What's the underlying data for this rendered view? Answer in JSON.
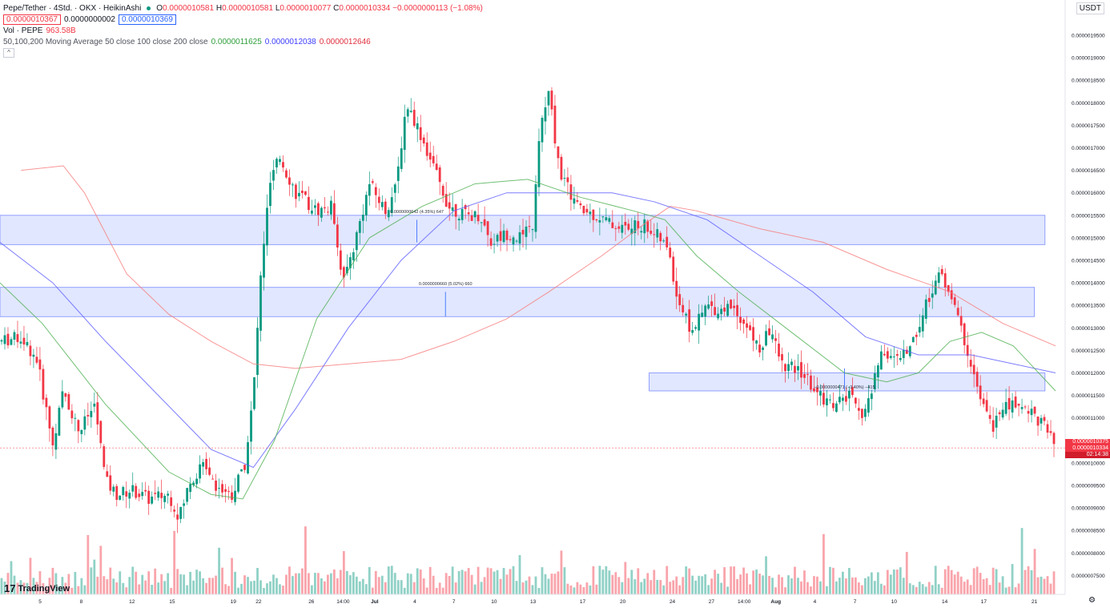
{
  "header": {
    "symbol": "Pepe/Tether · 4Std. · OKX · HeikinAshi",
    "open_label": "O",
    "open": "0.0000010581",
    "high_label": "H",
    "high": "0.0000010581",
    "low_label": "L",
    "low": "0.0000010077",
    "close_label": "C",
    "close": "0.0000010334",
    "change": "−0.0000000113 (−1.08%)",
    "bid": "0.0000010367",
    "spread": "0.0000000002",
    "ask": "0.0000010369",
    "vol_label": "Vol · PEPE",
    "vol_value": "963.58B",
    "ma_label": "50,100,200 Moving Average 50 close 100 close 200 close",
    "ma50_value": "0.0000011625",
    "ma100_value": "0.0000012038",
    "ma200_value": "0.0000012646",
    "collapse_glyph": "^"
  },
  "currency": "USDT",
  "price_tags": [
    "0.0000010375",
    "0.0000010334",
    "02:14:38"
  ],
  "brand": "TradingView",
  "brand_mark": "17",
  "gear_glyph": "⚙",
  "colors": {
    "up": "#089981",
    "down": "#F23645",
    "ma50": "#4CAF50",
    "ma100": "#5B5BFF",
    "ma200": "#F77B7B",
    "zone": "#DCE3FF"
  },
  "chart_data": {
    "type": "candlestick",
    "y_axis_ticks": [
      "0.0000019500",
      "0.0000019000",
      "0.0000018500",
      "0.0000018000",
      "0.0000017500",
      "0.0000017000",
      "0.0000016500",
      "0.0000016000",
      "0.0000015500",
      "0.0000015000",
      "0.0000014500",
      "0.0000014000",
      "0.0000013500",
      "0.0000013000",
      "0.0000012500",
      "0.0000012000",
      "0.0000011500",
      "0.0000011000",
      "0.0000010500",
      "0.0000010000",
      "0.0000009500",
      "0.0000009000",
      "0.0000008500",
      "0.0000008000",
      "0.0000007500"
    ],
    "y_tick_values": [
      1.95,
      1.9,
      1.85,
      1.8,
      1.75,
      1.7,
      1.65,
      1.6,
      1.55,
      1.5,
      1.45,
      1.4,
      1.35,
      1.3,
      1.25,
      1.2,
      1.15,
      1.1,
      1.05,
      1.0,
      0.95,
      0.9,
      0.85,
      0.8,
      0.75
    ],
    "price_unit": "×1e-6",
    "x_labels": [
      "5",
      "8",
      "12",
      "15",
      "19",
      "22",
      "26",
      "14:00",
      "Jul",
      "4",
      "7",
      "10",
      "13",
      "17",
      "20",
      "24",
      "27",
      "14:00",
      "Aug",
      "4",
      "7",
      "10",
      "14",
      "17",
      "21"
    ],
    "x_label_fractions": [
      0.038,
      0.077,
      0.125,
      0.163,
      0.221,
      0.245,
      0.295,
      0.325,
      0.355,
      0.393,
      0.43,
      0.468,
      0.505,
      0.552,
      0.59,
      0.637,
      0.674,
      0.705,
      0.735,
      0.772,
      0.81,
      0.847,
      0.895,
      0.932,
      0.98
    ],
    "price_path": [
      [
        0,
        1.27
      ],
      [
        0.02,
        1.28
      ],
      [
        0.035,
        1.23
      ],
      [
        0.05,
        1.04
      ],
      [
        0.06,
        1.16
      ],
      [
        0.075,
        1.07
      ],
      [
        0.09,
        1.13
      ],
      [
        0.1,
        0.96
      ],
      [
        0.11,
        0.93
      ],
      [
        0.125,
        0.94
      ],
      [
        0.14,
        0.92
      ],
      [
        0.16,
        0.93
      ],
      [
        0.17,
        0.88
      ],
      [
        0.18,
        0.96
      ],
      [
        0.195,
        1.0
      ],
      [
        0.205,
        0.95
      ],
      [
        0.22,
        0.93
      ],
      [
        0.232,
        1.0
      ],
      [
        0.24,
        1.15
      ],
      [
        0.248,
        1.45
      ],
      [
        0.256,
        1.62
      ],
      [
        0.265,
        1.68
      ],
      [
        0.28,
        1.6
      ],
      [
        0.3,
        1.56
      ],
      [
        0.315,
        1.57
      ],
      [
        0.325,
        1.4
      ],
      [
        0.335,
        1.48
      ],
      [
        0.35,
        1.62
      ],
      [
        0.365,
        1.56
      ],
      [
        0.375,
        1.61
      ],
      [
        0.385,
        1.8
      ],
      [
        0.395,
        1.75
      ],
      [
        0.41,
        1.66
      ],
      [
        0.425,
        1.57
      ],
      [
        0.44,
        1.55
      ],
      [
        0.455,
        1.55
      ],
      [
        0.465,
        1.49
      ],
      [
        0.48,
        1.51
      ],
      [
        0.495,
        1.5
      ],
      [
        0.505,
        1.53
      ],
      [
        0.512,
        1.75
      ],
      [
        0.52,
        1.82
      ],
      [
        0.53,
        1.65
      ],
      [
        0.54,
        1.6
      ],
      [
        0.55,
        1.56
      ],
      [
        0.565,
        1.55
      ],
      [
        0.58,
        1.53
      ],
      [
        0.595,
        1.52
      ],
      [
        0.61,
        1.53
      ],
      [
        0.625,
        1.5
      ],
      [
        0.635,
        1.46
      ],
      [
        0.64,
        1.38
      ],
      [
        0.655,
        1.29
      ],
      [
        0.67,
        1.35
      ],
      [
        0.68,
        1.34
      ],
      [
        0.695,
        1.35
      ],
      [
        0.71,
        1.29
      ],
      [
        0.72,
        1.25
      ],
      [
        0.73,
        1.3
      ],
      [
        0.74,
        1.22
      ],
      [
        0.76,
        1.2
      ],
      [
        0.775,
        1.15
      ],
      [
        0.79,
        1.13
      ],
      [
        0.805,
        1.15
      ],
      [
        0.815,
        1.1
      ],
      [
        0.825,
        1.15
      ],
      [
        0.835,
        1.25
      ],
      [
        0.85,
        1.23
      ],
      [
        0.86,
        1.25
      ],
      [
        0.87,
        1.3
      ],
      [
        0.88,
        1.37
      ],
      [
        0.89,
        1.42
      ],
      [
        0.9,
        1.38
      ],
      [
        0.91,
        1.3
      ],
      [
        0.92,
        1.22
      ],
      [
        0.93,
        1.13
      ],
      [
        0.94,
        1.08
      ],
      [
        0.95,
        1.12
      ],
      [
        0.96,
        1.13
      ],
      [
        0.975,
        1.12
      ],
      [
        0.99,
        1.08
      ],
      [
        1.0,
        1.03
      ]
    ],
    "ma50_path": [
      [
        0,
        1.4
      ],
      [
        0.04,
        1.31
      ],
      [
        0.1,
        1.13
      ],
      [
        0.16,
        0.98
      ],
      [
        0.2,
        0.93
      ],
      [
        0.23,
        0.92
      ],
      [
        0.26,
        1.05
      ],
      [
        0.3,
        1.32
      ],
      [
        0.35,
        1.5
      ],
      [
        0.4,
        1.57
      ],
      [
        0.45,
        1.62
      ],
      [
        0.5,
        1.63
      ],
      [
        0.55,
        1.59
      ],
      [
        0.6,
        1.56
      ],
      [
        0.63,
        1.54
      ],
      [
        0.66,
        1.46
      ],
      [
        0.7,
        1.38
      ],
      [
        0.75,
        1.29
      ],
      [
        0.8,
        1.2
      ],
      [
        0.84,
        1.18
      ],
      [
        0.87,
        1.2
      ],
      [
        0.9,
        1.27
      ],
      [
        0.93,
        1.29
      ],
      [
        0.96,
        1.26
      ],
      [
        1.0,
        1.16
      ]
    ],
    "ma100_path": [
      [
        0,
        1.49
      ],
      [
        0.05,
        1.4
      ],
      [
        0.1,
        1.27
      ],
      [
        0.15,
        1.15
      ],
      [
        0.2,
        1.03
      ],
      [
        0.24,
        0.99
      ],
      [
        0.28,
        1.12
      ],
      [
        0.33,
        1.3
      ],
      [
        0.38,
        1.45
      ],
      [
        0.43,
        1.56
      ],
      [
        0.48,
        1.6
      ],
      [
        0.53,
        1.6
      ],
      [
        0.58,
        1.6
      ],
      [
        0.62,
        1.58
      ],
      [
        0.67,
        1.54
      ],
      [
        0.72,
        1.46
      ],
      [
        0.77,
        1.38
      ],
      [
        0.82,
        1.28
      ],
      [
        0.87,
        1.24
      ],
      [
        0.92,
        1.24
      ],
      [
        0.96,
        1.22
      ],
      [
        1.0,
        1.2
      ]
    ],
    "ma200_path": [
      [
        0.02,
        1.65
      ],
      [
        0.06,
        1.66
      ],
      [
        0.08,
        1.6
      ],
      [
        0.12,
        1.42
      ],
      [
        0.16,
        1.33
      ],
      [
        0.2,
        1.27
      ],
      [
        0.24,
        1.22
      ],
      [
        0.28,
        1.21
      ],
      [
        0.33,
        1.22
      ],
      [
        0.38,
        1.23
      ],
      [
        0.43,
        1.27
      ],
      [
        0.48,
        1.32
      ],
      [
        0.52,
        1.38
      ],
      [
        0.57,
        1.46
      ],
      [
        0.61,
        1.53
      ],
      [
        0.635,
        1.57
      ],
      [
        0.66,
        1.56
      ],
      [
        0.72,
        1.52
      ],
      [
        0.78,
        1.49
      ],
      [
        0.84,
        1.43
      ],
      [
        0.9,
        1.38
      ],
      [
        0.95,
        1.31
      ],
      [
        1.0,
        1.26
      ]
    ],
    "zones": [
      {
        "x0": 0,
        "x1": 0.99,
        "y_top": 1.55,
        "y_bottom": 1.485
      },
      {
        "x0": 0,
        "x1": 0.98,
        "y_top": 1.39,
        "y_bottom": 1.325
      },
      {
        "x0": 0.615,
        "x1": 0.99,
        "y_top": 1.2,
        "y_bottom": 1.16
      }
    ],
    "annotations": [
      "0.0000000642 (4.35%) 647",
      "0.0000000660 (5.02%) 660",
      "−0.0000000471 (−3.40%) −415"
    ],
    "current_price": 1.0334
  }
}
